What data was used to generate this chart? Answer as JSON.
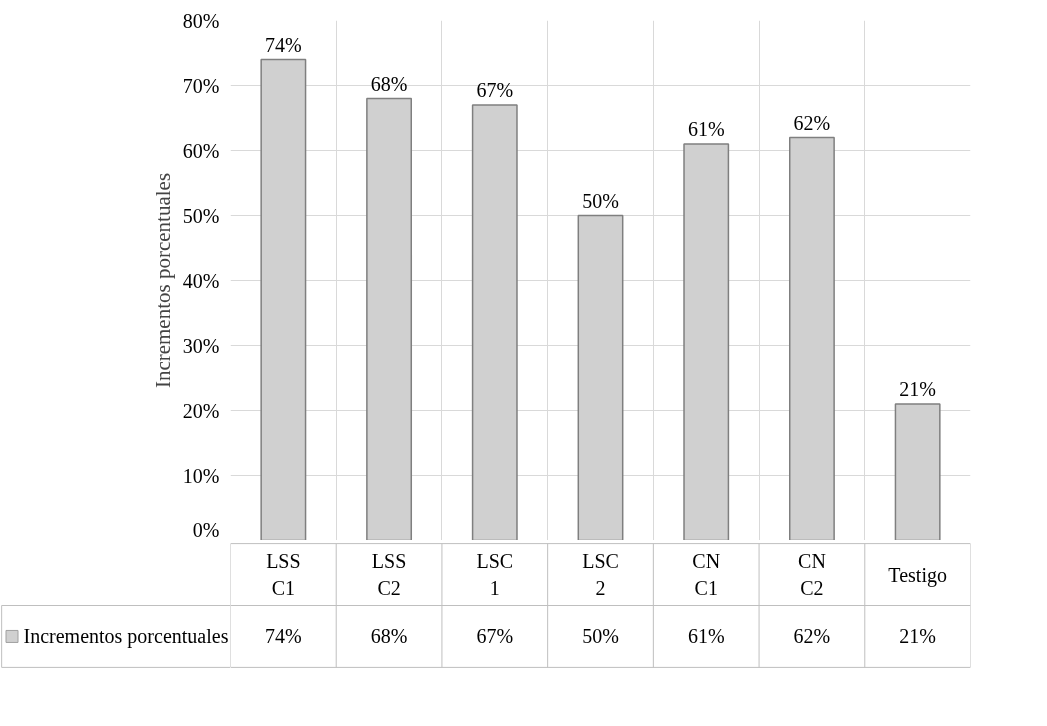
{
  "chart_data": {
    "type": "bar",
    "ylabel": "Incrementos porcentuales",
    "categories": [
      "LSS C1",
      "LSS C2",
      "LSC 1",
      "LSC 2",
      "CN C1",
      "CN C2",
      "Testigo"
    ],
    "series": [
      {
        "name": "Incrementos porcentuales",
        "color": "#d0d0d0",
        "values": [
          74,
          68,
          67,
          50,
          61,
          62,
          21
        ],
        "value_labels": [
          "74%",
          "68%",
          "67%",
          "50%",
          "61%",
          "62%",
          "21%"
        ]
      }
    ],
    "ylim": [
      0,
      80
    ],
    "yticks": [
      {
        "value": 0,
        "label": "0%"
      },
      {
        "value": 10,
        "label": "10%"
      },
      {
        "value": 20,
        "label": "20%"
      },
      {
        "value": 30,
        "label": "30%"
      },
      {
        "value": 40,
        "label": "40%"
      },
      {
        "value": 50,
        "label": "50%"
      },
      {
        "value": 60,
        "label": "60%"
      },
      {
        "value": 70,
        "label": "70%"
      },
      {
        "value": 80,
        "label": "80%"
      }
    ],
    "grid": true,
    "legend": "bottom"
  }
}
